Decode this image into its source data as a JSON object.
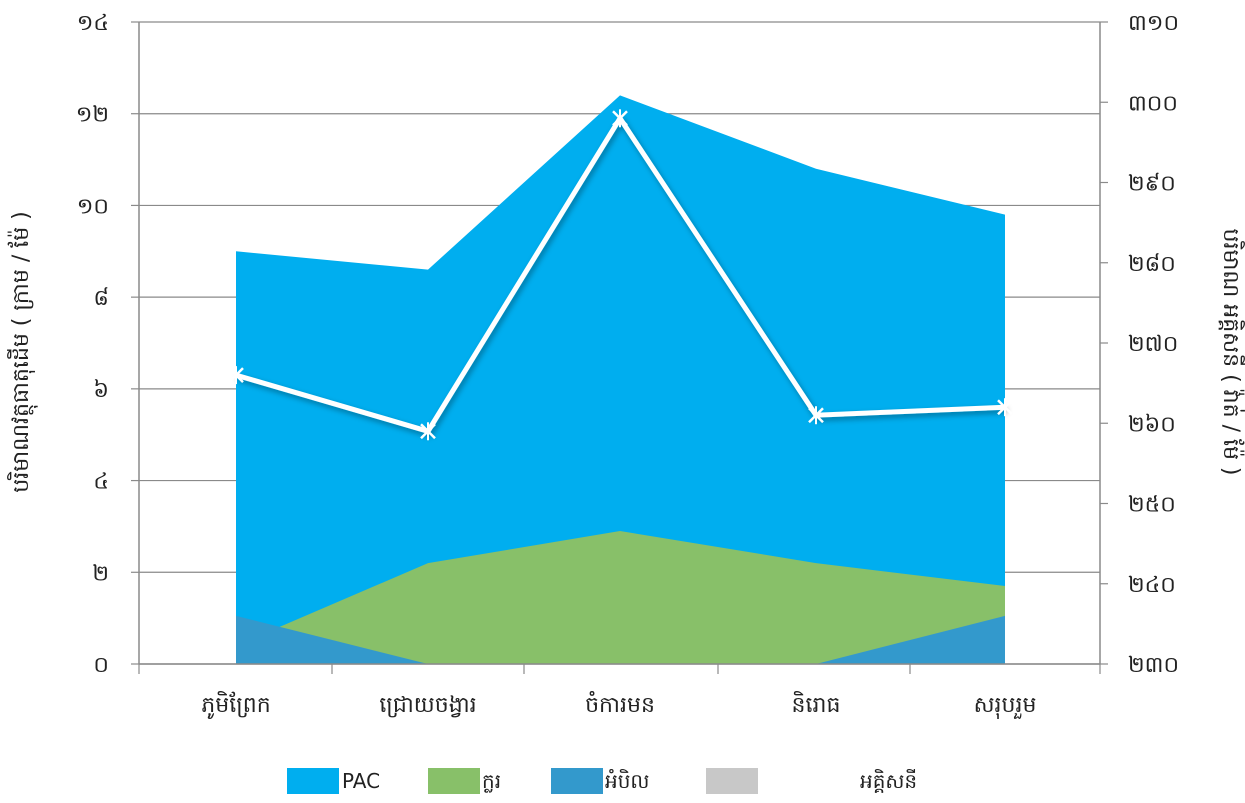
{
  "chart_data": {
    "type": "area",
    "categories": [
      "ភូមិព្រែក",
      "ជ្រោយចង្វារ",
      "ចំការមន",
      "និរោធ",
      "សរុបរួម"
    ],
    "y_left": {
      "label": "បរិមាណវត្ថុធាតុដើម ( ក្រាម / ម៉ែ )",
      "ylim": [
        0,
        14
      ],
      "ticks": [
        "០",
        "២",
        "៤",
        "៦",
        "៨",
        "១០",
        "១២",
        "១៤"
      ]
    },
    "y_right": {
      "label": "បរិមាណ អគ្គិសនី ( វ៉ាត់ / ម៉ែ )",
      "ylim": [
        230,
        310
      ],
      "ticks": [
        "២៣០",
        "២៤០",
        "២៥០",
        "២៦០",
        "២៧០",
        "២៨០",
        "២៩០",
        "៣០០",
        "៣១០"
      ]
    },
    "series": [
      {
        "name": "PAC",
        "kind": "area",
        "axis": "left",
        "color": "#00AEEF",
        "values": [
          9.0,
          8.6,
          12.4,
          10.8,
          9.8
        ]
      },
      {
        "name": "ក្លរ",
        "kind": "area",
        "axis": "left",
        "color": "#88C069",
        "values": [
          0.4,
          2.2,
          2.9,
          2.2,
          1.7
        ]
      },
      {
        "name": "អំបិល",
        "kind": "area",
        "axis": "left",
        "color": "#3399CC",
        "values": [
          1.05,
          0.0,
          0.0,
          0.0,
          1.05
        ]
      },
      {
        "name": "អគ្គិសនី",
        "kind": "line",
        "axis": "right",
        "color": "#ffffff",
        "legend_color": "#C8C8C8",
        "values": [
          266,
          259,
          298,
          261,
          262
        ]
      }
    ],
    "grid": true,
    "legend": "bottom"
  }
}
